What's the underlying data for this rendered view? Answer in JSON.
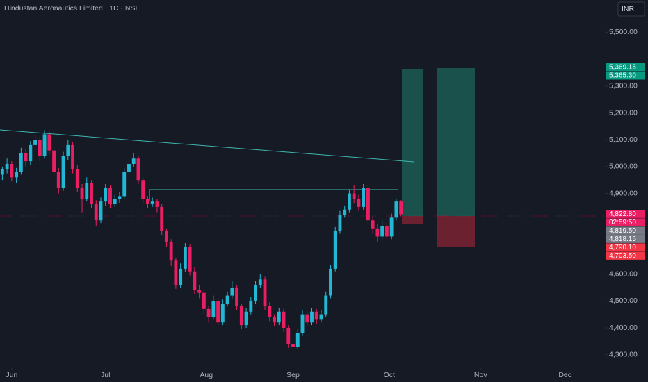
{
  "chart_data": {
    "type": "candlestick",
    "title": "Hindustan Aeronautics Limited · 1D · NSE",
    "currency": "INR",
    "up_color": "#22b8d4",
    "down_color": "#e91e63",
    "xlim": [
      -0.5,
      128.5
    ],
    "ylim": [
      4250,
      5620
    ],
    "xticks": [
      {
        "value": 2,
        "label": "Jun"
      },
      {
        "value": 22,
        "label": "Jul"
      },
      {
        "value": 43.5,
        "label": "Aug"
      },
      {
        "value": 62,
        "label": "Sep"
      },
      {
        "value": 82.5,
        "label": "Oct"
      },
      {
        "value": 102,
        "label": "Nov"
      },
      {
        "value": 120,
        "label": "Dec"
      }
    ],
    "yticks": [
      {
        "value": 5500,
        "label": "5,500.00"
      },
      {
        "value": 5300,
        "label": "5,300.00"
      },
      {
        "value": 5200,
        "label": "5,200.00"
      },
      {
        "value": 5100,
        "label": "5,100.00"
      },
      {
        "value": 5000,
        "label": "5,000.00"
      },
      {
        "value": 4900,
        "label": "4,900.00"
      },
      {
        "value": 4600,
        "label": "4,600.00"
      },
      {
        "value": 4500,
        "label": "4,500.00"
      },
      {
        "value": 4400,
        "label": "4,400.00"
      },
      {
        "value": 4300,
        "label": "4,300.00"
      }
    ],
    "open": [
      4970,
      4990,
      5010,
      4960,
      4980,
      5050,
      5020,
      5080,
      5100,
      5040,
      5120,
      5060,
      4980,
      4920,
      5040,
      5080,
      4990,
      4920,
      4880,
      4940,
      4860,
      4800,
      4870,
      4920,
      4860,
      4880,
      4890,
      4980,
      5010,
      5030,
      4950,
      4880,
      4860,
      4870,
      4850,
      4760,
      4720,
      4650,
      4560,
      4620,
      4700,
      4610,
      4540,
      4530,
      4470,
      4440,
      4500,
      4420,
      4490,
      4520,
      4550,
      4480,
      4410,
      4460,
      4500,
      4560,
      4580,
      4480,
      4440,
      4420,
      4460,
      4400,
      4340,
      4330,
      4380,
      4450,
      4420,
      4460,
      4430,
      4450,
      4520,
      4620,
      4760,
      4820,
      4840,
      4900,
      4880,
      4850,
      4920,
      4800,
      4770,
      4740,
      4780,
      4740,
      4810,
      4870
    ],
    "high": [
      5000,
      5030,
      5020,
      4995,
      5070,
      5065,
      5095,
      5120,
      5110,
      5135,
      5130,
      5075,
      4995,
      5055,
      5100,
      5090,
      5005,
      4935,
      4960,
      4950,
      4875,
      4885,
      4935,
      4930,
      4895,
      4905,
      4995,
      5020,
      5050,
      5040,
      4960,
      4890,
      4885,
      4880,
      4860,
      4770,
      4730,
      4660,
      4640,
      4715,
      4710,
      4625,
      4560,
      4545,
      4480,
      4520,
      4510,
      4505,
      4535,
      4575,
      4560,
      4490,
      4475,
      4515,
      4575,
      4600,
      4590,
      4495,
      4450,
      4475,
      4470,
      4410,
      4350,
      4395,
      4465,
      4460,
      4475,
      4470,
      4465,
      4535,
      4635,
      4775,
      4835,
      4855,
      4915,
      4930,
      4895,
      4935,
      4930,
      4815,
      4785,
      4800,
      4795,
      4825,
      4880,
      4875
    ],
    "low": [
      4950,
      4975,
      4945,
      4940,
      4970,
      5000,
      5005,
      5060,
      5020,
      5030,
      5045,
      4965,
      4900,
      4910,
      5025,
      4975,
      4905,
      4830,
      4870,
      4845,
      4780,
      4790,
      4855,
      4845,
      4850,
      4865,
      4880,
      4965,
      5000,
      4935,
      4865,
      4845,
      4850,
      4830,
      4745,
      4700,
      4630,
      4545,
      4550,
      4610,
      4595,
      4525,
      4510,
      4450,
      4420,
      4430,
      4405,
      4410,
      4480,
      4510,
      4465,
      4395,
      4400,
      4450,
      4490,
      4550,
      4465,
      4425,
      4405,
      4410,
      4385,
      4325,
      4315,
      4320,
      4370,
      4405,
      4410,
      4415,
      4420,
      4440,
      4510,
      4610,
      4750,
      4810,
      4830,
      4865,
      4835,
      4840,
      4785,
      4750,
      4720,
      4725,
      4725,
      4730,
      4800,
      4815
    ],
    "close": [
      4990,
      5010,
      4960,
      4980,
      5050,
      5020,
      5080,
      5100,
      5040,
      5120,
      5060,
      4980,
      4920,
      5040,
      5080,
      4990,
      4920,
      4880,
      4940,
      4860,
      4800,
      4870,
      4920,
      4860,
      4880,
      4890,
      4980,
      5010,
      5030,
      4950,
      4880,
      4860,
      4870,
      4850,
      4760,
      4720,
      4650,
      4560,
      4620,
      4700,
      4610,
      4540,
      4530,
      4470,
      4440,
      4500,
      4420,
      4490,
      4520,
      4550,
      4480,
      4410,
      4460,
      4500,
      4560,
      4580,
      4480,
      4440,
      4420,
      4460,
      4400,
      4340,
      4330,
      4380,
      4450,
      4420,
      4460,
      4430,
      4450,
      4520,
      4620,
      4760,
      4820,
      4840,
      4900,
      4880,
      4850,
      4920,
      4800,
      4770,
      4740,
      4780,
      4740,
      4810,
      4870,
      4822.8
    ],
    "price_labels": [
      {
        "value": 5369.15,
        "label": "5,369.15",
        "color": "#089981"
      },
      {
        "value": 5365.3,
        "label": "5,365.30",
        "color": "#089981"
      },
      {
        "value": 4822.8,
        "label": "4,822.80",
        "color": "#e91e63"
      },
      {
        "value": 4819.5,
        "label": "4,819.50",
        "color": "#787b86"
      },
      {
        "value": 4818.15,
        "label": "4,818.15",
        "color": "#787b86"
      },
      {
        "value": 4790.1,
        "label": "4,790.10",
        "color": "#f23645"
      },
      {
        "value": 4703.5,
        "label": "4,703.50",
        "color": "#f23645"
      }
    ],
    "countdown": "02:59:50"
  }
}
